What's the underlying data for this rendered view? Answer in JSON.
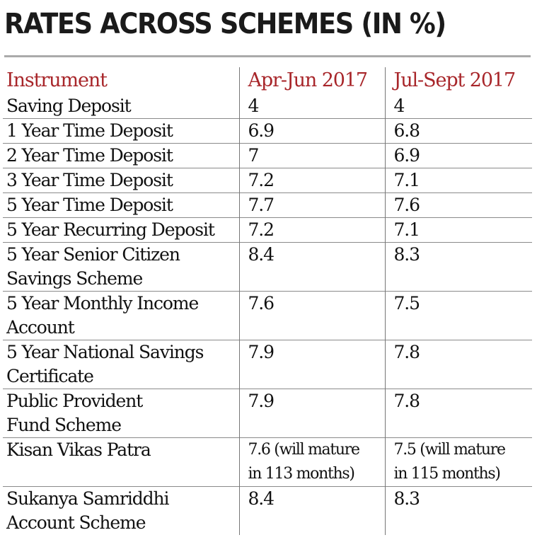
{
  "title": "RATES ACROSS SCHEMES (IN %)",
  "table": {
    "headers": [
      "Instrument",
      "Apr-Jun 2017",
      "Jul-Sept 2017"
    ],
    "rows": [
      {
        "name_lines": [
          "Saving Deposit"
        ],
        "apr_jun": [
          "4"
        ],
        "jul_sept": [
          "4"
        ]
      },
      {
        "name_lines": [
          "1 Year Time Deposit"
        ],
        "apr_jun": [
          "6.9"
        ],
        "jul_sept": [
          "6.8"
        ]
      },
      {
        "name_lines": [
          "2 Year Time Deposit"
        ],
        "apr_jun": [
          "7"
        ],
        "jul_sept": [
          "6.9"
        ]
      },
      {
        "name_lines": [
          "3 Year Time Deposit"
        ],
        "apr_jun": [
          "7.2"
        ],
        "jul_sept": [
          "7.1"
        ]
      },
      {
        "name_lines": [
          "5 Year Time Deposit"
        ],
        "apr_jun": [
          "7.7"
        ],
        "jul_sept": [
          "7.6"
        ]
      },
      {
        "name_lines": [
          "5 Year Recurring Deposit"
        ],
        "apr_jun": [
          "7.2"
        ],
        "jul_sept": [
          "7.1"
        ]
      },
      {
        "name_lines": [
          "5 Year Senior Citizen",
          "Savings Scheme"
        ],
        "apr_jun": [
          "8.4"
        ],
        "jul_sept": [
          "8.3"
        ]
      },
      {
        "name_lines": [
          "5 Year Monthly Income",
          "Account"
        ],
        "apr_jun": [
          "7.6"
        ],
        "jul_sept": [
          "7.5"
        ]
      },
      {
        "name_lines": [
          "5 Year National Savings",
          "Certificate"
        ],
        "apr_jun": [
          "7.9"
        ],
        "jul_sept": [
          "7.8"
        ]
      },
      {
        "name_lines": [
          "Public Provident",
          "Fund Scheme"
        ],
        "apr_jun": [
          "7.9"
        ],
        "jul_sept": [
          "7.8"
        ]
      },
      {
        "name_lines": [
          "Kisan Vikas Patra"
        ],
        "apr_jun": [
          "7.6 (will mature",
          "in 113 months)"
        ],
        "jul_sept": [
          "7.5 (will mature",
          "in 115 months)"
        ],
        "note": true
      },
      {
        "name_lines": [
          "Sukanya Samriddhi",
          "Account Scheme"
        ],
        "apr_jun": [
          "8.4"
        ],
        "jul_sept": [
          "8.3"
        ]
      }
    ]
  },
  "colors": {
    "header_text": "#a8262a",
    "body_text": "#111111",
    "rule": "#8a8a8a"
  }
}
